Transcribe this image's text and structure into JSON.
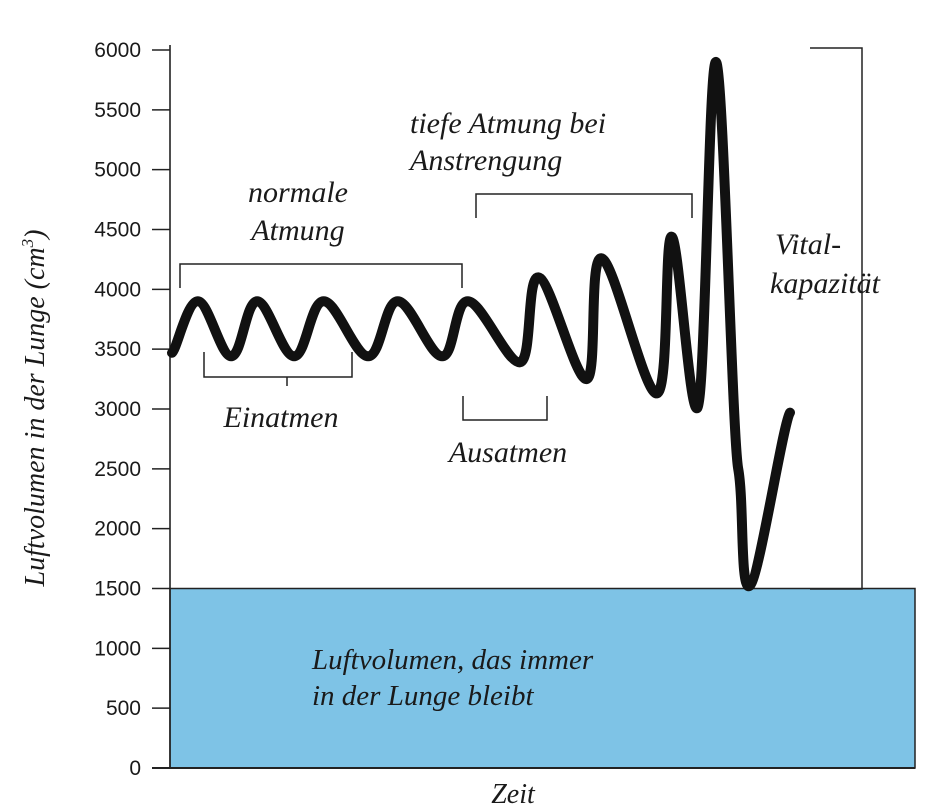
{
  "chart_data": {
    "type": "line",
    "title": "",
    "xlabel": "Zeit",
    "ylabel": "Luftvolumen in der Lunge (cm³)",
    "ylim": [
      0,
      6000
    ],
    "y_ticks": [
      "6000",
      "5500",
      "5000",
      "4500",
      "4000",
      "3500",
      "3000",
      "2500",
      "2000",
      "1500",
      "1000",
      "500",
      "0"
    ],
    "grid": false,
    "residual_region": {
      "range": [
        0,
        1500
      ],
      "label_line1": "Luftvolumen, das immer",
      "label_line2": "in der Lunge bleibt",
      "color": "#7ec3e6"
    },
    "series": [
      {
        "color": "#111111",
        "x": [
          0,
          0.35,
          0.8,
          1.15,
          1.65,
          2.05,
          2.65,
          3.05,
          3.65,
          4.0,
          4.7,
          4.95,
          5.6,
          5.8,
          6.55,
          6.75,
          7.1,
          7.35,
          7.65,
          7.8,
          8.35
        ],
        "y": [
          3470,
          3900,
          3440,
          3900,
          3440,
          3900,
          3440,
          3900,
          3440,
          3900,
          3390,
          4100,
          3250,
          4260,
          3130,
          4440,
          3010,
          5900,
          2500,
          1520,
          2970
        ]
      }
    ],
    "annotations": {
      "normal_line1": "normale",
      "normal_line2": "Atmung",
      "deep_line1": "tiefe Atmung bei",
      "deep_line2": "Anstrengung",
      "inhale": "Einatmen",
      "exhale": "Ausatmen",
      "vital_line1": "Vital-",
      "vital_line2": "kapazität"
    }
  }
}
